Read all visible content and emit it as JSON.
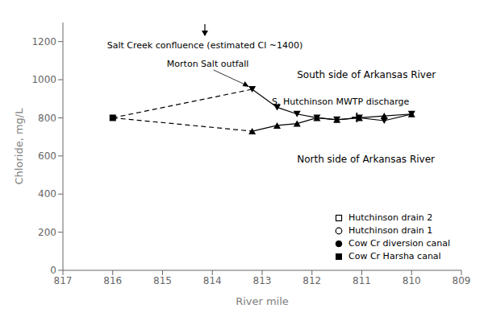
{
  "chart_data": {
    "type": "line",
    "xlabel": "River mile",
    "ylabel": "Chloride, mg/L",
    "xlim": [
      817,
      809
    ],
    "xticks": [
      817,
      816,
      815,
      814,
      813,
      812,
      811,
      810,
      809
    ],
    "ylim": [
      0,
      1300
    ],
    "yticks": [
      0,
      200,
      400,
      600,
      800,
      1000,
      1200
    ],
    "grid": false,
    "color": "#000000",
    "series": [
      {
        "x": [
          816,
          813.2
        ],
        "values": [
          800,
          950
        ],
        "line_style": "dashed",
        "marker": "none"
      },
      {
        "x": [
          816,
          813.2
        ],
        "values": [
          800,
          730
        ],
        "line_style": "dashed",
        "marker": "none"
      },
      {
        "x": [
          816
        ],
        "values": [
          800
        ],
        "line_style": "none",
        "marker": "square"
      },
      {
        "name": "South side of Arkansas River",
        "x": [
          813.2,
          812.7,
          812.3,
          811.9,
          811.5,
          811.05,
          810.55,
          810.0
        ],
        "values": [
          950,
          855,
          820,
          800,
          790,
          800,
          785,
          820
        ],
        "line_style": "solid",
        "marker": "triangle_down"
      },
      {
        "name": "North side of Arkansas River",
        "x": [
          813.2,
          812.7,
          812.3,
          811.9,
          811.5,
          811.05,
          810.55,
          810.0
        ],
        "values": [
          730,
          760,
          770,
          800,
          790,
          800,
          810,
          820
        ],
        "line_style": "solid",
        "marker": "triangle_up"
      },
      {
        "name": "S. Hutchinson MWTP discharge",
        "x": [
          811.1
        ],
        "values": [
          802
        ],
        "line_style": "none",
        "marker": "plus"
      }
    ],
    "annotations": [
      {
        "text": "Salt Creek confluence (estimated Cl ~1400)",
        "x": 814.15
      },
      {
        "text": "Morton Salt outfall",
        "x": 813.2,
        "y": 950
      }
    ],
    "legend_items": [
      {
        "name": "Hutchinson drain 2",
        "marker": "square_open"
      },
      {
        "name": "Hutchinson drain 1",
        "marker": "circle_open"
      },
      {
        "name": "Cow Cr diversion canal",
        "marker": "circle"
      },
      {
        "name": "Cow Cr Harsha canal",
        "marker": "square"
      }
    ]
  }
}
